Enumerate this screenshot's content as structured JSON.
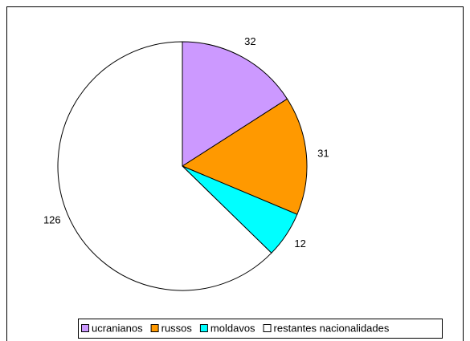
{
  "chart_data": {
    "type": "pie",
    "categories": [
      "ucranianos",
      "russos",
      "moldavos",
      "restantes nacionalidades"
    ],
    "values": [
      32,
      31,
      12,
      126
    ],
    "colors": [
      "#cc99ff",
      "#ff9900",
      "#00ffff",
      "#ffffff"
    ],
    "legend": "bottom"
  }
}
